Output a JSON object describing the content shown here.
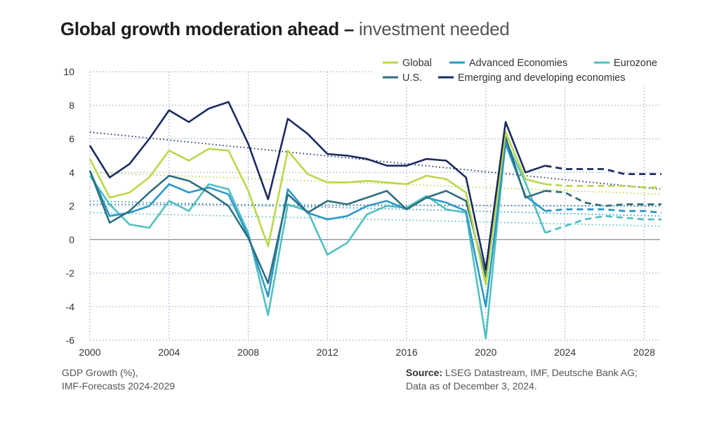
{
  "title": {
    "bold": "Global growth moderation ahead –",
    "light": " investment needed"
  },
  "footnote": {
    "line1": "GDP Growth (%),",
    "line2": "IMF-Forecasts 2024-2029"
  },
  "source": {
    "label": "Source:",
    "line1": " LSEG Datastream, IMF, Deutsche Bank AG;",
    "line2": "Data as of December 3, 2024."
  },
  "chart_data": {
    "type": "line",
    "x_ticks": [
      2000,
      2004,
      2008,
      2012,
      2016,
      2020,
      2024,
      2028
    ],
    "y_ticks": [
      10,
      8,
      6,
      4,
      2,
      0,
      -2,
      -4,
      -6
    ],
    "ylim": [
      -6,
      10
    ],
    "xlim": [
      2000,
      2028.8
    ],
    "grid": true,
    "legend_position": "top-right",
    "actual_years": [
      2000,
      2001,
      2002,
      2003,
      2004,
      2005,
      2006,
      2007,
      2008,
      2009,
      2010,
      2011,
      2012,
      2013,
      2014,
      2015,
      2016,
      2017,
      2018,
      2019,
      2020,
      2021,
      2022,
      2023
    ],
    "forecast_years": [
      2023,
      2024,
      2025,
      2026,
      2027,
      2028,
      2029
    ],
    "series": [
      {
        "name": "Global",
        "color": "#b9d84a",
        "actual": [
          4.8,
          2.5,
          2.8,
          3.7,
          5.3,
          4.7,
          5.4,
          5.3,
          2.9,
          -0.4,
          5.3,
          3.9,
          3.4,
          3.4,
          3.5,
          3.4,
          3.3,
          3.8,
          3.6,
          2.8,
          -2.7,
          6.4,
          3.6,
          3.3
        ],
        "forecast": [
          3.3,
          3.2,
          3.2,
          3.2,
          3.2,
          3.1,
          3.1
        ],
        "trend": [
          4.0,
          2.7
        ]
      },
      {
        "name": "Advanced Economies",
        "color": "#2a98c8",
        "actual": [
          4.1,
          1.4,
          1.6,
          2.0,
          3.3,
          2.8,
          3.1,
          2.7,
          0.2,
          -3.4,
          3.0,
          1.6,
          1.2,
          1.4,
          2.0,
          2.3,
          1.8,
          2.5,
          2.2,
          1.7,
          -4.0,
          5.7,
          2.6,
          1.7
        ],
        "forecast": [
          1.7,
          1.8,
          1.8,
          1.8,
          1.7,
          1.7,
          1.6
        ],
        "trend": [
          2.3,
          1.4
        ]
      },
      {
        "name": "Eurozone",
        "color": "#52c0c0",
        "actual": [
          3.8,
          2.1,
          0.9,
          0.7,
          2.3,
          1.7,
          3.3,
          3.0,
          0.4,
          -4.5,
          2.1,
          1.7,
          -0.9,
          -0.2,
          1.5,
          2.0,
          1.9,
          2.6,
          1.8,
          1.6,
          -5.9,
          5.9,
          3.4,
          0.4
        ],
        "forecast": [
          0.4,
          0.8,
          1.2,
          1.4,
          1.3,
          1.2,
          1.2
        ],
        "trend": [
          1.6,
          0.8
        ]
      },
      {
        "name": "U.S.",
        "color": "#2f6f7e",
        "actual": [
          4.1,
          1.0,
          1.7,
          2.8,
          3.8,
          3.5,
          2.8,
          2.0,
          0.1,
          -2.6,
          2.7,
          1.6,
          2.3,
          2.1,
          2.5,
          2.9,
          1.8,
          2.5,
          2.9,
          2.3,
          -2.2,
          6.1,
          2.5,
          2.9
        ],
        "forecast": [
          2.9,
          2.8,
          2.2,
          2.0,
          2.1,
          2.1,
          2.1
        ],
        "trend": [
          2.1,
          2.0
        ]
      },
      {
        "name": "Emerging and developing economies",
        "color": "#1b2b60",
        "actual": [
          5.6,
          3.7,
          4.5,
          6.0,
          7.7,
          7.0,
          7.8,
          8.2,
          5.7,
          2.4,
          7.2,
          6.3,
          5.1,
          5.0,
          4.8,
          4.4,
          4.4,
          4.8,
          4.7,
          3.7,
          -1.8,
          7.0,
          4.0,
          4.4
        ],
        "forecast": [
          4.4,
          4.2,
          4.2,
          4.2,
          3.9,
          3.9,
          3.9
        ],
        "trend": [
          6.4,
          3.0
        ]
      }
    ]
  }
}
